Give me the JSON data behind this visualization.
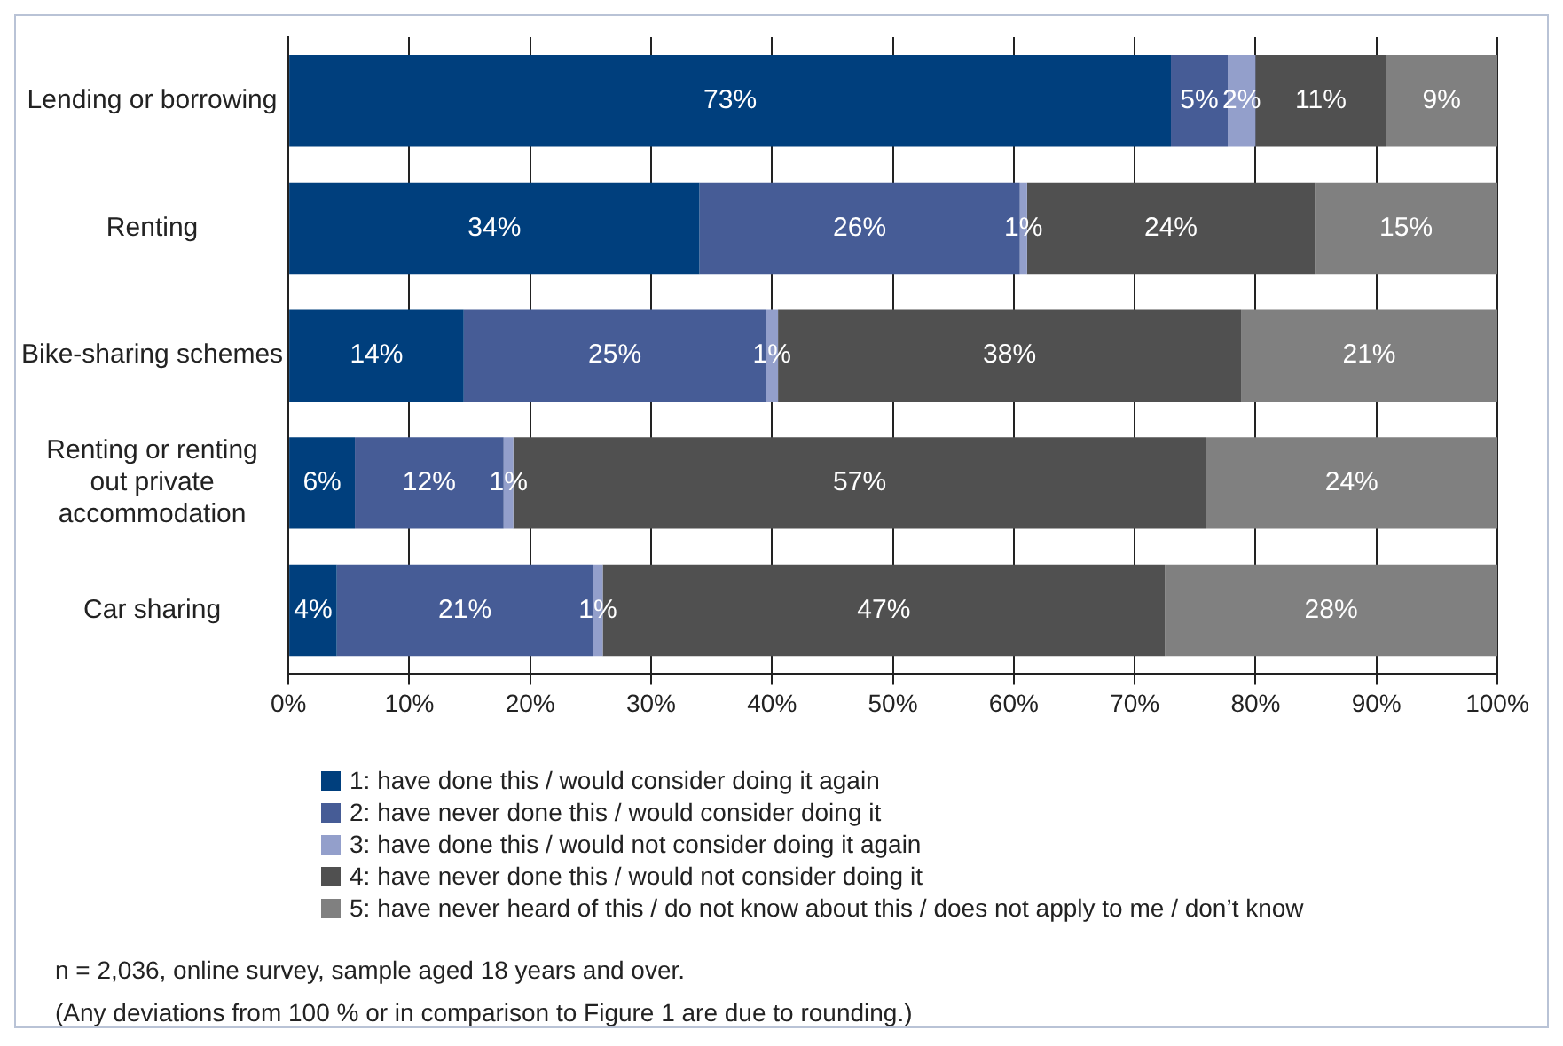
{
  "chart_data": {
    "type": "bar",
    "orientation": "horizontal",
    "stacked": true,
    "categories": [
      "Lending or borrowing",
      "Renting",
      "Bike-sharing schemes",
      "Renting or renting out private accommodation",
      "Car sharing"
    ],
    "series": [
      {
        "name": "1: have done this / would consider doing it again",
        "color": "#003f7d",
        "values": [
          73,
          34,
          14.5,
          5.5,
          4
        ],
        "value_labels": [
          "73%",
          "34%",
          "14%",
          "6%",
          "4%"
        ]
      },
      {
        "name": "2: have never done this / would consider doing it",
        "color": "#465c96",
        "values": [
          4.7,
          26.5,
          25,
          12.3,
          21.2
        ],
        "value_labels": [
          "5%",
          "26%",
          "25%",
          "12%",
          "21%"
        ]
      },
      {
        "name": "3: have done this / would not consider doing it again",
        "color": "#939fcb",
        "values": [
          2.3,
          0.6,
          1,
          0.8,
          0.8
        ],
        "value_labels": [
          "2%",
          "1%",
          "1%",
          "1%",
          "1%"
        ]
      },
      {
        "name": "4: have never done this / would not consider doing it",
        "color": "#505050",
        "values": [
          10.8,
          23.8,
          38.3,
          57.3,
          46.5
        ],
        "value_labels": [
          "11%",
          "24%",
          "38%",
          "57%",
          "47%"
        ]
      },
      {
        "name": "5: have never heard of this / do not know about this / does not apply to me / don’t know",
        "color": "#808080",
        "values": [
          9.2,
          15.1,
          21.2,
          24.1,
          27.5
        ],
        "value_labels": [
          "9%",
          "15%",
          "21%",
          "24%",
          "28%"
        ]
      }
    ],
    "xlim": [
      0,
      100
    ],
    "xticks": [
      {
        "value": 0,
        "label": "0%"
      },
      {
        "value": 10,
        "label": "10%"
      },
      {
        "value": 20,
        "label": "20%"
      },
      {
        "value": 30,
        "label": "30%"
      },
      {
        "value": 40,
        "label": "40%"
      },
      {
        "value": 50,
        "label": "50%"
      },
      {
        "value": 60,
        "label": "60%"
      },
      {
        "value": 70,
        "label": "70%"
      },
      {
        "value": 80,
        "label": "80%"
      },
      {
        "value": 90,
        "label": "90%"
      },
      {
        "value": 100,
        "label": "100%"
      }
    ],
    "grid": "x",
    "legend": "bottom",
    "annotations": [
      "n = 2,036, online survey, sample aged 18 years and over.",
      "(Any deviations from 100 % or in comparison to Figure 1 are due to rounding.)"
    ]
  }
}
